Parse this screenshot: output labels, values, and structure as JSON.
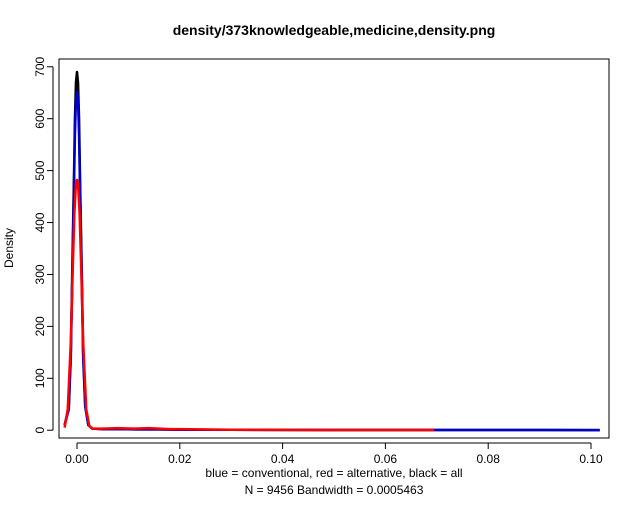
{
  "chart_data": {
    "type": "line",
    "title": "density/373knowledgeable,medicine,density.png",
    "xlabel": "blue = conventional, red = alternative, black = all",
    "xlabel2": "N = 9456   Bandwidth = 0.0005463",
    "ylabel": "Density",
    "xlim": [
      -0.0035,
      0.1035
    ],
    "ylim": [
      -15,
      715
    ],
    "xticks": [
      0.0,
      0.02,
      0.04,
      0.06,
      0.08,
      0.1
    ],
    "xtick_labels": [
      "0.00",
      "0.02",
      "0.04",
      "0.06",
      "0.08",
      "0.10"
    ],
    "yticks": [
      0,
      100,
      200,
      300,
      400,
      500,
      600,
      700
    ],
    "ytick_labels": [
      "0",
      "100",
      "200",
      "300",
      "400",
      "500",
      "600",
      "700"
    ],
    "grid": false,
    "series": [
      {
        "color": "#000000",
        "x": [
          -0.0024,
          -0.0016,
          -0.0012,
          -0.0009,
          -0.0006,
          -0.0004,
          -0.0002,
          0.0,
          0.0002,
          0.0004,
          0.0006,
          0.0009,
          0.0012,
          0.0016,
          0.0022,
          0.003,
          0.005,
          0.008,
          0.012,
          0.016,
          0.02,
          0.03,
          0.05,
          0.07,
          0.09,
          0.1017
        ],
        "y": [
          10,
          45,
          150,
          320,
          480,
          600,
          670,
          690,
          670,
          600,
          480,
          320,
          150,
          50,
          10,
          3,
          2,
          2,
          1.5,
          1.5,
          1,
          0.8,
          0.5,
          0.4,
          0.3,
          0.2
        ]
      },
      {
        "color": "#0000cc",
        "x": [
          -0.0024,
          -0.0016,
          -0.0012,
          -0.0009,
          -0.0006,
          -0.0004,
          -0.0002,
          0.0,
          0.0002,
          0.0004,
          0.0006,
          0.0009,
          0.0012,
          0.0016,
          0.0022,
          0.003,
          0.005,
          0.008,
          0.012,
          0.016,
          0.02,
          0.03,
          0.05,
          0.07,
          0.09,
          0.1017
        ],
        "y": [
          10,
          40,
          140,
          300,
          460,
          570,
          635,
          652,
          635,
          570,
          460,
          300,
          140,
          45,
          10,
          3,
          2,
          2,
          1.5,
          1.5,
          1,
          0.8,
          0.5,
          0.4,
          0.3,
          0.2
        ]
      },
      {
        "color": "#ff0000",
        "x": [
          -0.0024,
          -0.0018,
          -0.0012,
          -0.0008,
          -0.0005,
          -0.0002,
          0.0,
          0.0002,
          0.0005,
          0.0008,
          0.0012,
          0.0018,
          0.0024,
          0.003,
          0.005,
          0.008,
          0.011,
          0.014,
          0.016,
          0.018,
          0.02,
          0.03,
          0.05,
          0.0695
        ],
        "y": [
          5,
          40,
          170,
          320,
          420,
          475,
          482,
          475,
          420,
          320,
          170,
          40,
          8,
          3,
          3,
          4,
          3,
          4,
          3,
          2,
          2,
          1,
          0.5,
          0.3
        ]
      }
    ]
  }
}
